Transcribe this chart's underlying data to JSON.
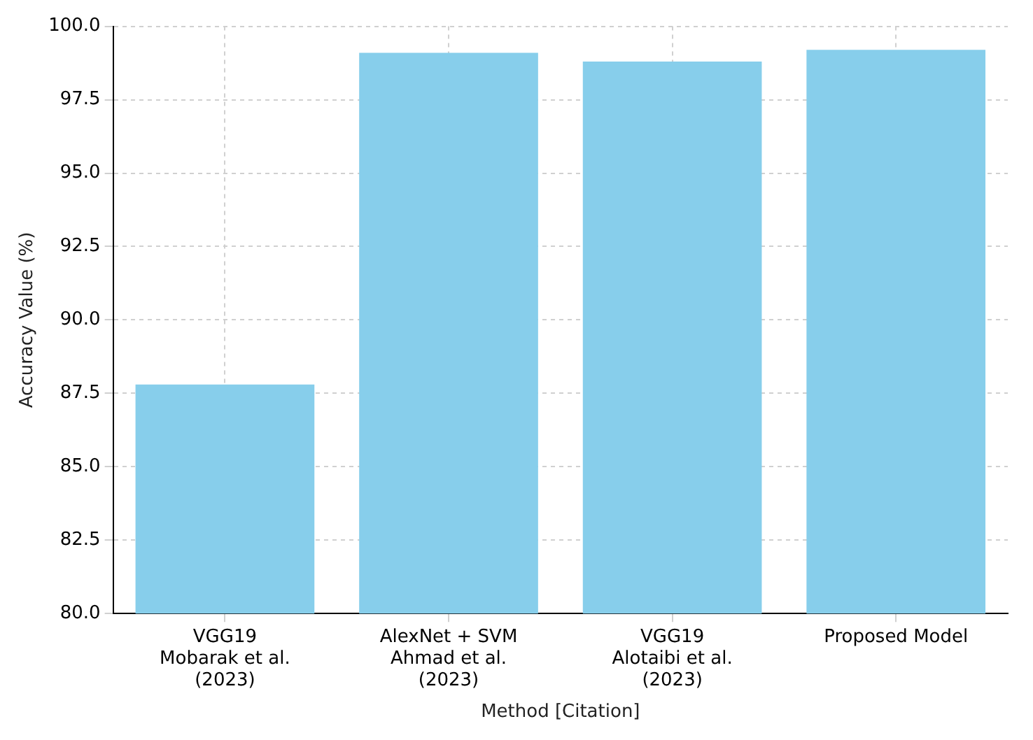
{
  "chart_data": {
    "type": "bar",
    "xlabel": "Method [Citation]",
    "ylabel": "Accuracy Value (%)",
    "categories": [
      "VGG19\nMobarak et al.\n(2023)",
      "AlexNet + SVM\nAhmad et al.\n(2023)",
      "VGG19\nAlotaibi et al.\n(2023)",
      "Proposed Model"
    ],
    "values": [
      87.8,
      99.1,
      98.8,
      99.2
    ],
    "color": "#87ceeb",
    "ylim": [
      80,
      100
    ],
    "yticks": [
      {
        "value": 80,
        "label": "80.0"
      },
      {
        "value": 82.5,
        "label": "82.5"
      },
      {
        "value": 85,
        "label": "85.0"
      },
      {
        "value": 87.5,
        "label": "87.5"
      },
      {
        "value": 90,
        "label": "90.0"
      },
      {
        "value": 92.5,
        "label": "92.5"
      },
      {
        "value": 95,
        "label": "95.0"
      },
      {
        "value": 97.5,
        "label": "97.5"
      },
      {
        "value": 100,
        "label": "100.0"
      }
    ],
    "grid": true,
    "legend": false
  }
}
